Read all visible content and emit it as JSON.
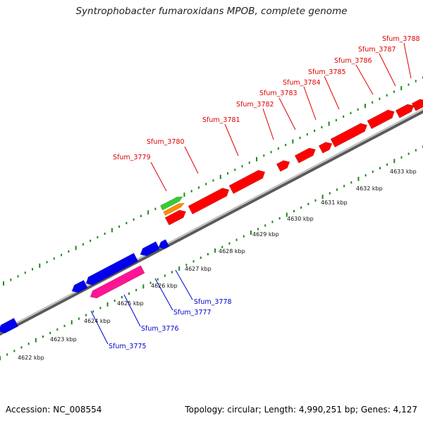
{
  "title": "Syntrophobacter fumaroxidans MPOB, complete genome",
  "footer": {
    "accession": "Accession: NC_008554",
    "summary": "Topology: circular; Length: 4,990,251 bp; Genes: 4,127"
  },
  "colors": {
    "backbone": "#8a8a8a",
    "forward_gene": "#ff0000",
    "reverse_gene": "#0000ee",
    "forward_label": "#dd0000",
    "reverse_label": "#0000cc",
    "pink_gene": "#ff1493",
    "green_gene": "#33cc33",
    "orange_gene": "#ff8c00",
    "tick": "#1a8a1a"
  },
  "forward_labels": [
    "Sfum_3779",
    "Sfum_3780",
    "Sfum_3781",
    "Sfum_3782",
    "Sfum_3783",
    "Sfum_3784",
    "Sfum_3785",
    "Sfum_3786",
    "Sfum_3787",
    "Sfum_3788"
  ],
  "reverse_labels": [
    "Sfum_3775",
    "Sfum_3776",
    "Sfum_3777",
    "Sfum_3778"
  ],
  "kbp_labels": [
    "4622 kbp",
    "4623 kbp",
    "4624 kbp",
    "4625 kbp",
    "4626 kbp",
    "4627 kbp",
    "4628 kbp",
    "4629 kbp",
    "4630 kbp",
    "4631 kbp",
    "4632 kbp",
    "4633 kbp"
  ]
}
